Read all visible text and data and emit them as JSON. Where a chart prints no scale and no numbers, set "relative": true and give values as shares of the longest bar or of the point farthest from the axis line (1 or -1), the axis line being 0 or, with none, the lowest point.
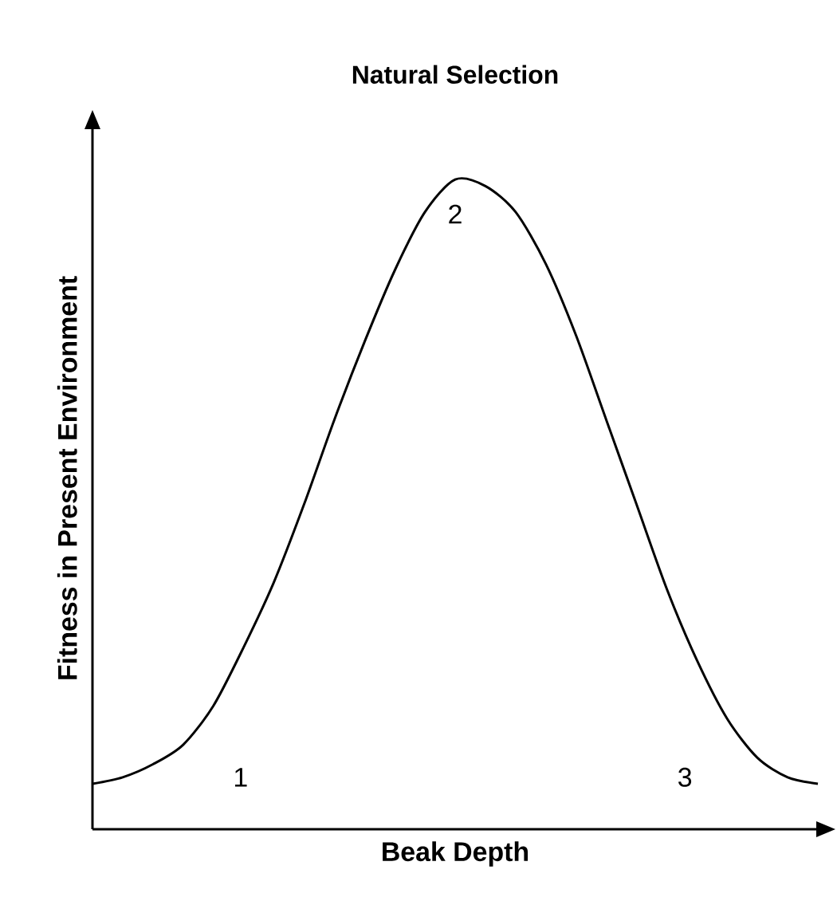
{
  "chart_data": {
    "type": "line",
    "title": "Natural Selection",
    "xlabel": "Beak Depth",
    "ylabel": "Fitness in Present Environment",
    "relative": true,
    "categories": [
      null,
      null,
      null,
      null,
      null,
      null,
      null,
      null,
      null,
      null,
      null,
      null,
      null,
      null,
      null,
      null,
      null,
      null,
      null,
      null,
      null,
      null,
      null,
      null,
      null
    ],
    "series": [
      {
        "color": "#000000",
        "values": [
          0.07,
          0.08,
          0.1,
          0.13,
          0.19,
          0.28,
          0.38,
          0.5,
          0.63,
          0.75,
          0.86,
          0.95,
          1,
          0.99,
          0.95,
          0.87,
          0.76,
          0.63,
          0.5,
          0.37,
          0.26,
          0.17,
          0.11,
          0.08,
          0.07
        ]
      }
    ],
    "annotations": [
      "1",
      "2",
      "3"
    ]
  }
}
